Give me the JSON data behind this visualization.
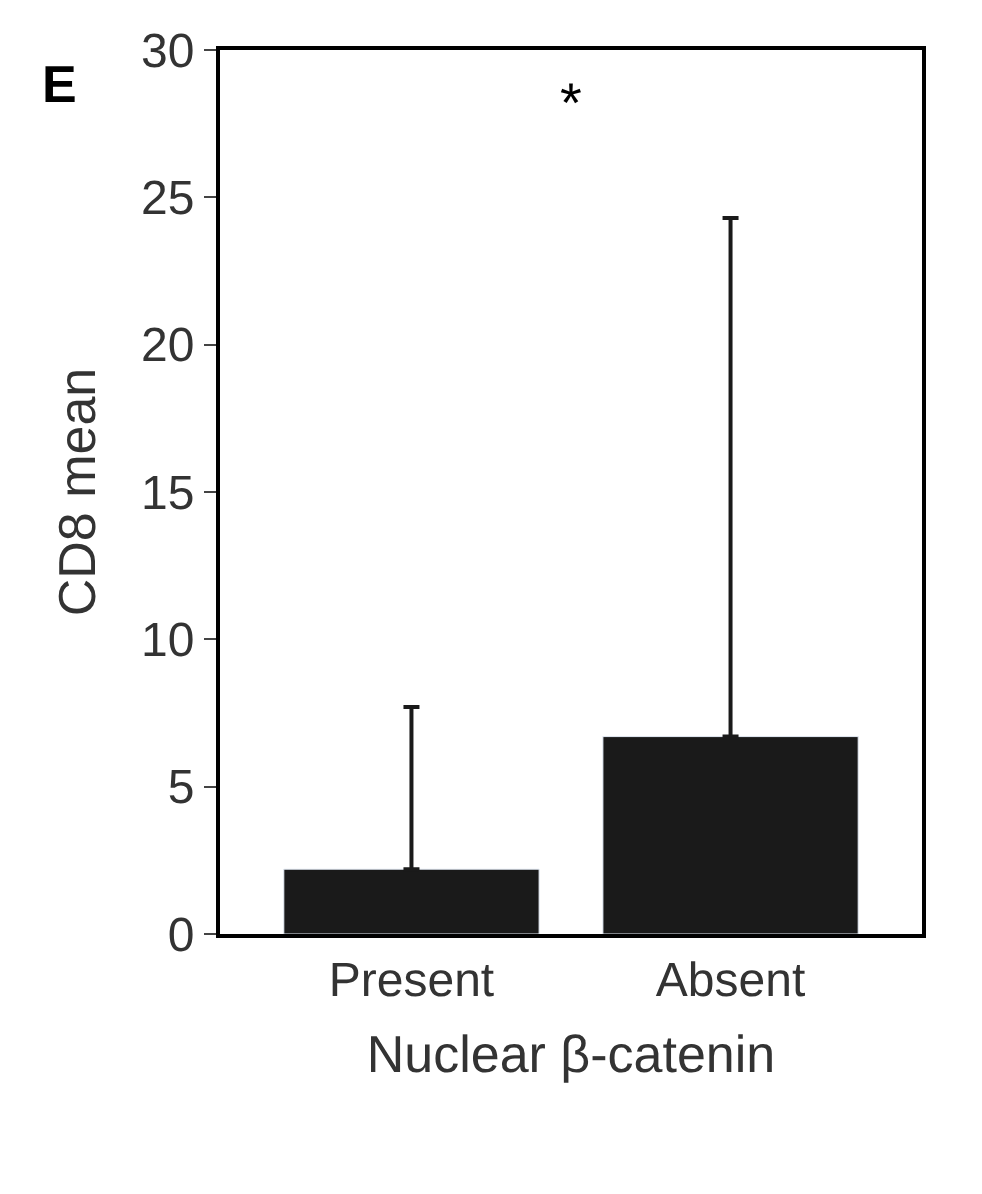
{
  "chart_data": {
    "type": "bar",
    "xlabel": "Nuclear β-catenin",
    "ylabel": "CD8 mean",
    "categories": [
      "Present",
      "Absent"
    ],
    "values": [
      2.2,
      6.7
    ],
    "errors": [
      [
        2.2,
        7.7
      ],
      [
        6.7,
        24.3
      ]
    ],
    "color": "#1a1a1a",
    "ylim": [
      0,
      30
    ],
    "yticks": [
      0,
      5,
      10,
      15,
      20,
      25,
      30
    ],
    "annotations": [
      "E",
      "*"
    ]
  }
}
